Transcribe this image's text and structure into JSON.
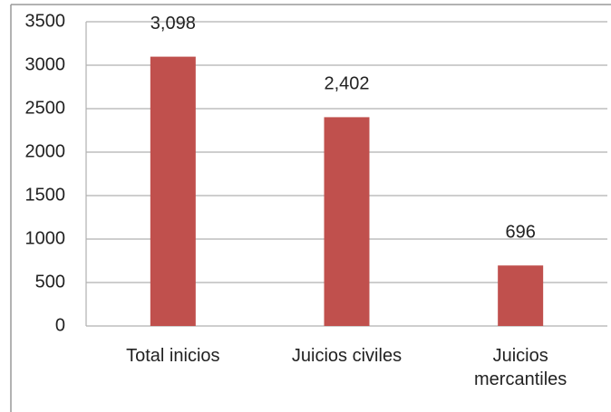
{
  "chart_data": {
    "type": "bar",
    "categories": [
      "Total inicios",
      "Juicios civiles",
      "Juicios mercantiles"
    ],
    "values": [
      3098,
      2402,
      696
    ],
    "value_labels": [
      "3,098",
      "2,402",
      "696"
    ],
    "color": "#c0504d",
    "ylim": [
      0,
      3500
    ],
    "yticks": [
      0,
      500,
      1000,
      1500,
      2000,
      2500,
      3000,
      3500
    ],
    "grid": true
  }
}
